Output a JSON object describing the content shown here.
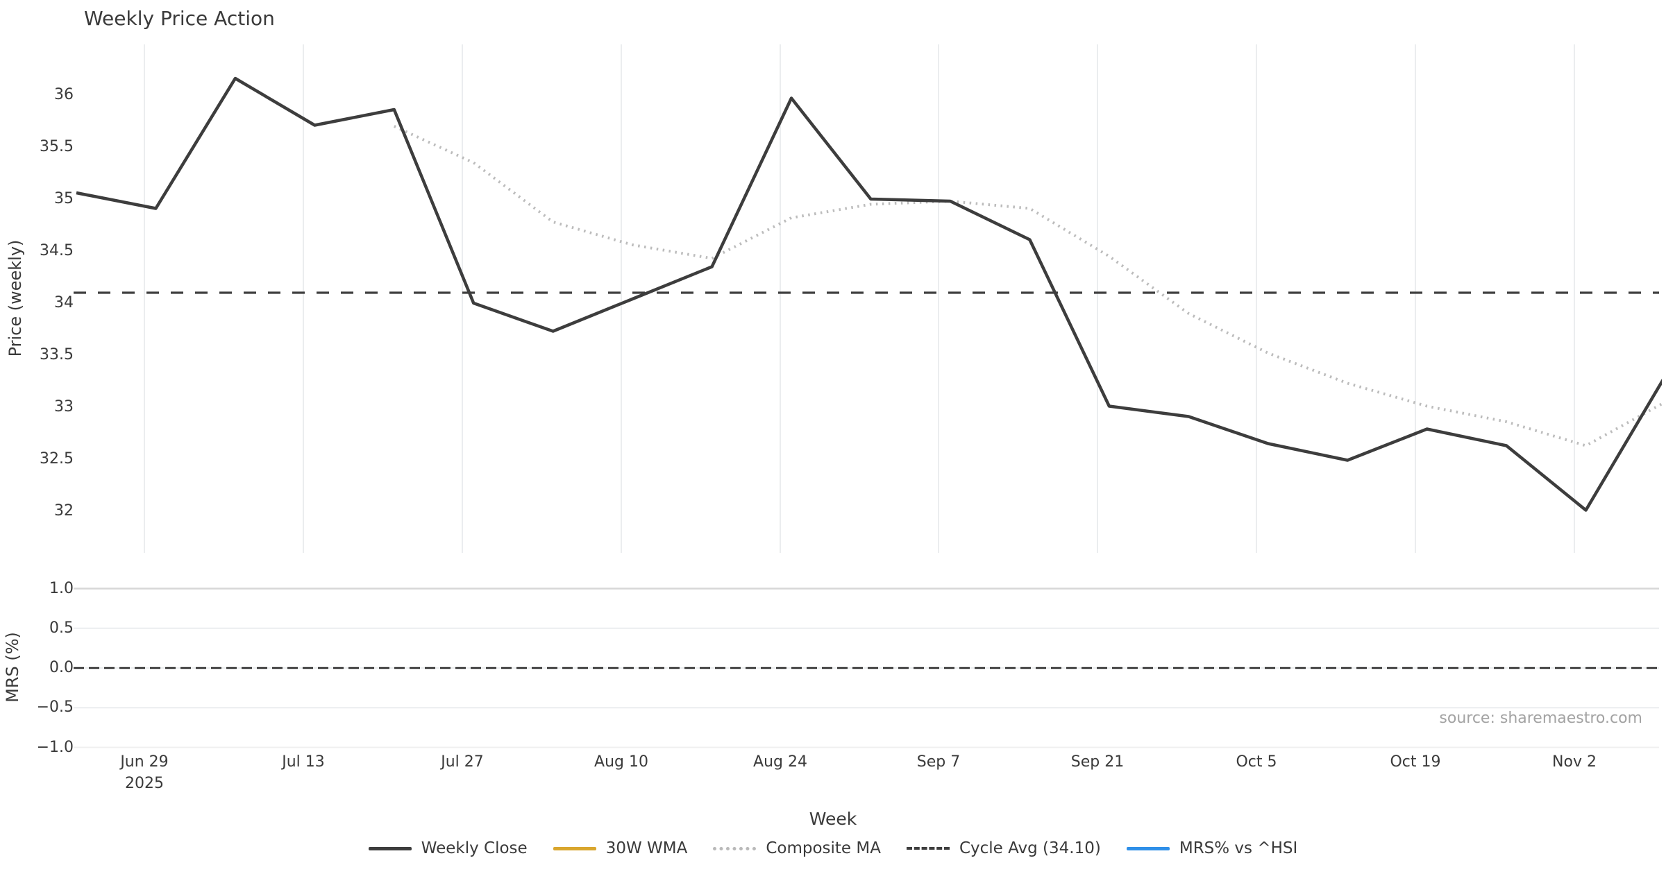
{
  "title": "Weekly Price Action",
  "source": "source: sharemaestro.com",
  "axes": {
    "price_label": "Price (weekly)",
    "mrs_label": "MRS (%)",
    "x_label": "Week"
  },
  "colors": {
    "close": "#3d3d3d",
    "composite": "#bcbcbc",
    "cycle": "#3e3e3e",
    "wma": "#d9a62e",
    "mrs_blue": "#2f8fe8",
    "mrs_zero": "#2b2b2b",
    "grid": "#ebedef",
    "grid_strong": "#d7d7d7",
    "grid_faint": "#f0f0f0",
    "text": "#3a3a3a",
    "muted": "#a3a3a3"
  },
  "legend": {
    "items": [
      {
        "label": "Weekly Close",
        "color": "#3d3d3d",
        "style": "solid"
      },
      {
        "label": "30W WMA",
        "color": "#d9a62e",
        "style": "solid"
      },
      {
        "label": "Composite MA",
        "color": "#b9b9b9",
        "style": "dotted"
      },
      {
        "label": "Cycle Avg (34.10)",
        "color": "#3e3e3e",
        "style": "dashed"
      },
      {
        "label": "MRS% vs ^HSI",
        "color": "#2f8fe8",
        "style": "solid"
      }
    ]
  },
  "chart_data": {
    "type": "line",
    "title": "Weekly Price Action",
    "xlabel": "Week",
    "x_tick_labels": [
      {
        "label": "Jun 29",
        "sub": "2025"
      },
      {
        "label": "Jul 13"
      },
      {
        "label": "Jul 27"
      },
      {
        "label": "Aug 10"
      },
      {
        "label": "Aug 24"
      },
      {
        "label": "Sep 7"
      },
      {
        "label": "Sep 21"
      },
      {
        "label": "Oct 5"
      },
      {
        "label": "Oct 19"
      },
      {
        "label": "Nov 2"
      }
    ],
    "panels": [
      {
        "ylabel": "Price (weekly)",
        "ylim": [
          31.6,
          36.5
        ],
        "grid": "vertical-only",
        "yticks": [
          {
            "label": "36",
            "value": 36
          },
          {
            "label": "35.5",
            "value": 35.5
          },
          {
            "label": "35",
            "value": 35
          },
          {
            "label": "34.5",
            "value": 34.5
          },
          {
            "label": "34",
            "value": 34
          },
          {
            "label": "33.5",
            "value": 33.5
          },
          {
            "label": "33",
            "value": 33
          },
          {
            "label": "32.5",
            "value": 32.5
          },
          {
            "label": "32",
            "value": 32
          }
        ],
        "cycle_avg": 34.1,
        "series": [
          {
            "name": "Weekly Close",
            "style": "solid",
            "values": [
              35.06,
              34.91,
              36.16,
              35.71,
              35.86,
              34.0,
              33.73,
              34.04,
              34.35,
              35.97,
              35.0,
              34.98,
              34.61,
              33.01,
              32.91,
              32.65,
              32.49,
              32.79,
              32.63,
              32.01,
              33.3
            ]
          },
          {
            "name": "Composite MA",
            "style": "dotted",
            "values": [
              null,
              null,
              null,
              null,
              35.7,
              35.35,
              34.78,
              34.56,
              34.43,
              34.82,
              34.95,
              34.98,
              34.91,
              34.45,
              33.9,
              33.52,
              33.23,
              33.01,
              32.86,
              32.63,
              33.05
            ]
          },
          {
            "name": "30W WMA",
            "style": "solid",
            "values": null,
            "note": "in legend but not visible in plot"
          },
          {
            "name": "Cycle Avg (34.10)",
            "style": "dashed",
            "constant": 34.1
          }
        ]
      },
      {
        "ylabel": "MRS (%)",
        "ylim": [
          -1.05,
          1.05
        ],
        "grid": "horizontal-only",
        "yticks": [
          {
            "label": "1.0",
            "value": 1.0
          },
          {
            "label": "0.5",
            "value": 0.5
          },
          {
            "label": "0.0",
            "value": 0.0
          },
          {
            "label": "−0.5",
            "value": -0.5
          },
          {
            "label": "−1.0",
            "value": -1.0
          }
        ],
        "zero_line": 0.0,
        "series": [
          {
            "name": "MRS% vs ^HSI",
            "style": "solid",
            "values": null,
            "note": "in legend but not visible in plot"
          }
        ]
      }
    ],
    "legend_position": "bottom-center"
  }
}
